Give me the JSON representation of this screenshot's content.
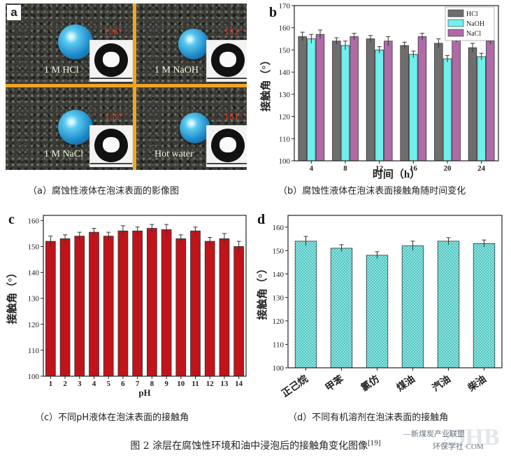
{
  "panel_a": {
    "letter": "a",
    "quadrants": [
      {
        "label": "1 M HCl",
        "angle": "156°"
      },
      {
        "label": "1 M NaOH",
        "angle": "152°"
      },
      {
        "label": "1 M NaCl",
        "angle": "152°"
      },
      {
        "label": "Hot water",
        "angle": "151°"
      }
    ],
    "caption": "（a）腐蚀性液体在泡沫表面的影像图"
  },
  "chart_data": [
    {
      "panel": "b",
      "type": "bar",
      "title": "",
      "xlabel": "时间（h）",
      "ylabel": "接触角（°）",
      "ylim": [
        100,
        170
      ],
      "yticks": [
        100,
        110,
        120,
        130,
        140,
        150,
        160,
        170
      ],
      "categories": [
        "4",
        "8",
        "12",
        "16",
        "20",
        "24"
      ],
      "series": [
        {
          "name": "HCl",
          "color": "#6e6e6e",
          "values": [
            156,
            154,
            155,
            152,
            153,
            151
          ],
          "errors": [
            2,
            1.5,
            1.5,
            1.5,
            2,
            2
          ]
        },
        {
          "name": "NaOH",
          "color": "#6ff0ec",
          "values": [
            155,
            152,
            150,
            148,
            146,
            147
          ],
          "errors": [
            2,
            2,
            1.5,
            1.5,
            1.5,
            1.5
          ]
        },
        {
          "name": "NaCl",
          "color": "#b06aa8",
          "values": [
            157,
            156,
            154,
            156,
            155,
            154
          ],
          "errors": [
            2,
            1.5,
            2,
            1.5,
            1.5,
            1.5
          ]
        }
      ],
      "legend": "top-right",
      "caption": "（b）腐蚀性液体在泡沫表面接触角随时间变化"
    },
    {
      "panel": "c",
      "type": "bar",
      "title": "",
      "xlabel": "pH",
      "ylabel": "接触角（°）",
      "ylim": [
        100,
        162
      ],
      "yticks": [
        100,
        110,
        120,
        130,
        140,
        150,
        160
      ],
      "categories": [
        "1",
        "2",
        "3",
        "4",
        "5",
        "6",
        "7",
        "8",
        "9",
        "10",
        "11",
        "12",
        "13",
        "14"
      ],
      "series": [
        {
          "color": "#c0141a",
          "values": [
            152,
            153,
            154,
            155.5,
            154,
            156,
            156,
            157,
            156.5,
            153,
            156,
            152,
            153,
            150
          ],
          "errors": [
            2,
            1.5,
            1.5,
            1.5,
            1.5,
            2,
            1.5,
            1.5,
            2,
            1.5,
            1.5,
            1.5,
            2,
            2
          ]
        }
      ],
      "caption": "（c）不同pH液体在泡沫表面的接触角"
    },
    {
      "panel": "d",
      "type": "bar",
      "title": "",
      "xlabel": "",
      "ylabel": "接触角（°）",
      "ylim": [
        100,
        165
      ],
      "yticks": [
        100,
        110,
        120,
        130,
        140,
        150,
        160
      ],
      "categories": [
        "正己烷",
        "甲苯",
        "氯仿",
        "煤油",
        "汽油",
        "柴油"
      ],
      "series": [
        {
          "color": "#5ed6d2",
          "values": [
            154,
            151,
            148,
            152,
            154,
            153
          ],
          "errors": [
            2,
            1.5,
            1.5,
            2,
            1.5,
            1.5
          ]
        }
      ],
      "caption": "（d）不同有机溶剂在泡沫表面的接触角"
    }
  ],
  "figure_caption": {
    "text": "图 2 涂层在腐蚀性环境和油中浸泡后的接触角变化图像",
    "ref": "[19]"
  },
  "watermark": {
    "text": "—新煤炭产业联盟",
    "sub": "环保学社·COM",
    "logo": "25HB"
  }
}
